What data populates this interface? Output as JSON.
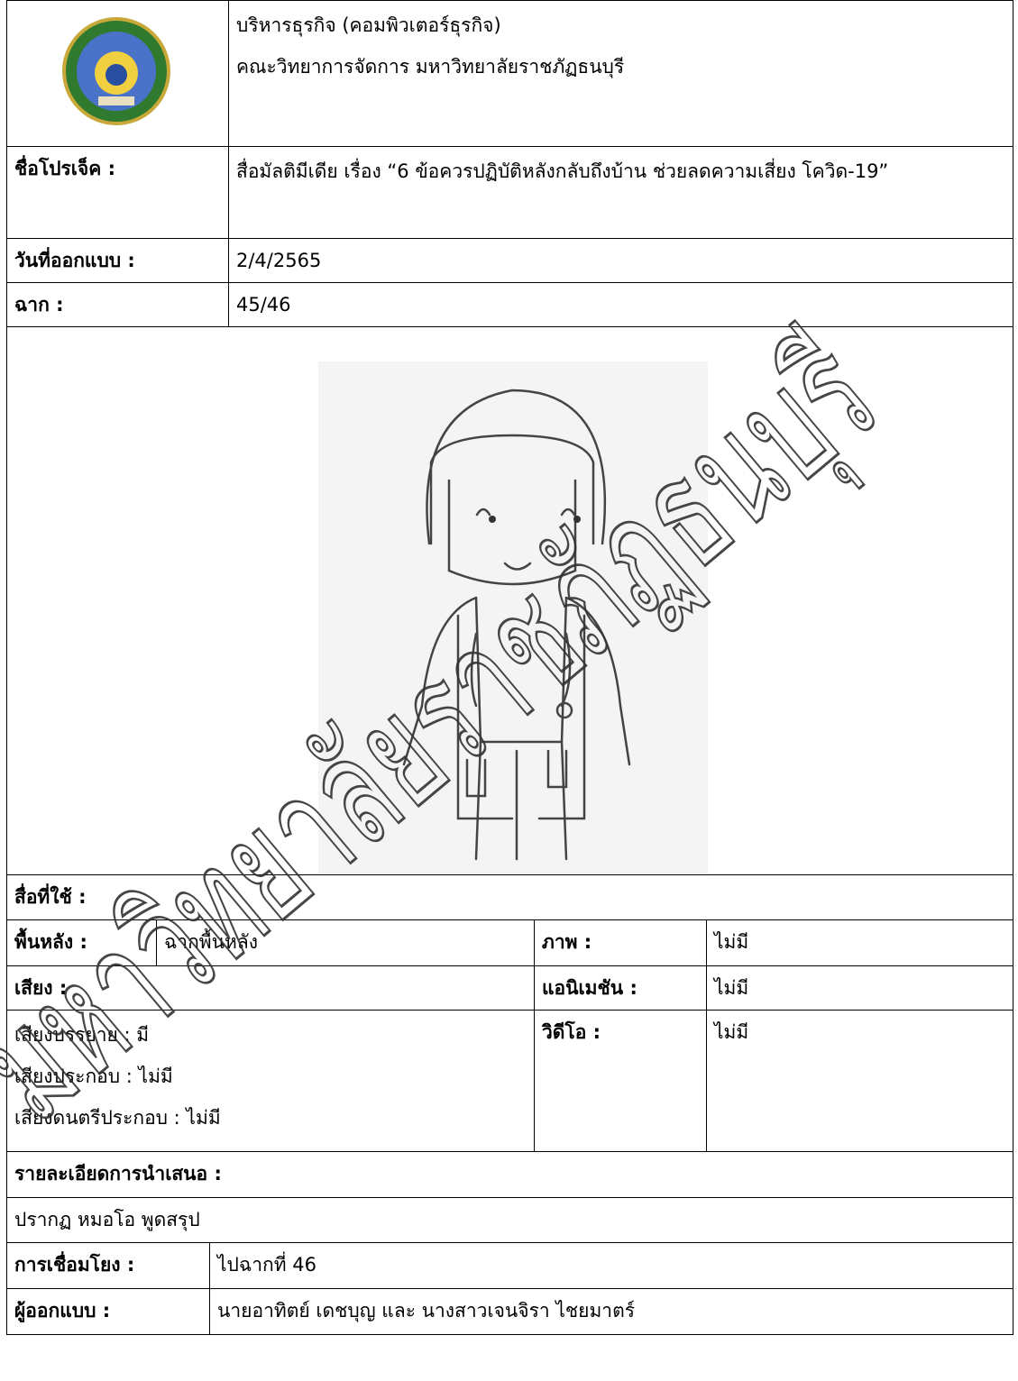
{
  "header": {
    "program": "บริหารธุรกิจ (คอมพิวเตอร์ธุรกิจ)",
    "faculty": "คณะวิทยาการจัดการ มหาวิทยาลัยราชภัฏธนบุรี"
  },
  "project": {
    "label": "ชื่อโปรเจ็ค :",
    "value": "สื่อมัลติมีเดีย เรื่อง “6 ข้อควรปฏิบัติหลังกลับถึงบ้าน ช่วยลดความเสี่ยง โควิด-19”"
  },
  "design_date": {
    "label": "วันที่ออกแบบ :",
    "value": "2/4/2565"
  },
  "scene": {
    "label": "ฉาก :",
    "value": "45/46"
  },
  "media": {
    "label": "สื่อที่ใช้ :"
  },
  "background": {
    "label": "พื้นหลัง :",
    "value": "ฉากพื้นหลัง"
  },
  "image": {
    "label": "ภาพ :",
    "value": "ไม่มี"
  },
  "sound": {
    "label": "เสียง :"
  },
  "animation": {
    "label": "แอนิเมชัน :",
    "value": "ไม่มี"
  },
  "sound_details": [
    "เสียงบรรยาย : มี",
    "เสียงประกอบ : ไม่มี",
    "เสียงดนตรีประกอบ : ไม่มี"
  ],
  "video": {
    "label": "วิดีโอ :",
    "value": "ไม่มี"
  },
  "presentation": {
    "label": "รายละเอียดการนำเสนอ :",
    "value": "ปรากฏ หมอโอ พูดสรุป"
  },
  "link": {
    "label": "การเชื่อมโยง :",
    "value": "ไปฉากที่ 46"
  },
  "designer": {
    "label": "ผู้ออกแบบ :",
    "value": "นายอาทิตย์ เดชบุญ และ นางสาวเจนจิรา ไชยมาตร์"
  },
  "watermark": "มหาวิทยาลัยราชภัฏธนบุรี"
}
